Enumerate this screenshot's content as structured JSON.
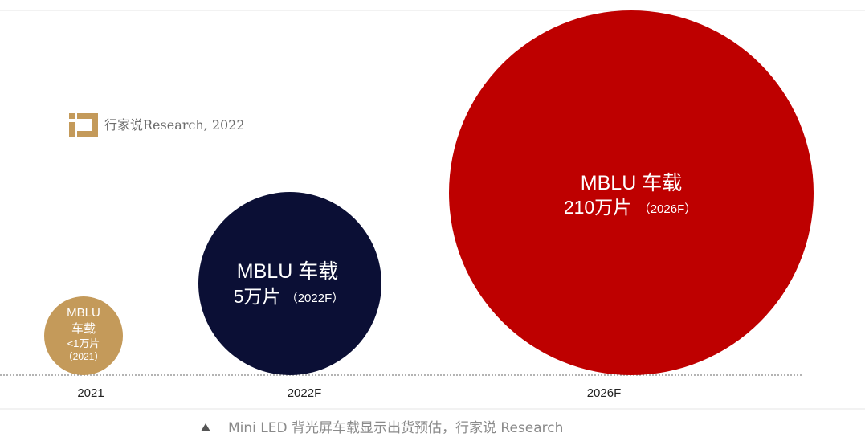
{
  "watermark": {
    "logo_icon": "ixs-logo-icon",
    "text": "行家说Research, 2022",
    "color": "#c49a5a"
  },
  "chart_data": {
    "type": "bubble",
    "categories": [
      "2021",
      "2022F",
      "2026F"
    ],
    "values": [
      1,
      5,
      210
    ],
    "value_note": [
      "<1",
      "5",
      "210"
    ],
    "unit": "万片",
    "bubbles": [
      {
        "category": "2021",
        "label_lines": [
          "MBLU",
          "车载",
          "<1万片",
          "（2021）"
        ],
        "color": "#c49a5a"
      },
      {
        "category": "2022F",
        "label_lines": [
          "MBLU 车载",
          "5万片",
          "（2022F）"
        ],
        "color": "#0b0f35"
      },
      {
        "category": "2026F",
        "label_lines": [
          "MBLU 车载",
          "210万片",
          "（2026F）"
        ],
        "color": "#be0000"
      }
    ],
    "title": "",
    "xlabel": "",
    "ylabel": "",
    "grid": false
  },
  "caption": {
    "icon": "triangle-up-icon",
    "text": "Mini LED 背光屏车载显示出货预估，行家说 Research"
  }
}
